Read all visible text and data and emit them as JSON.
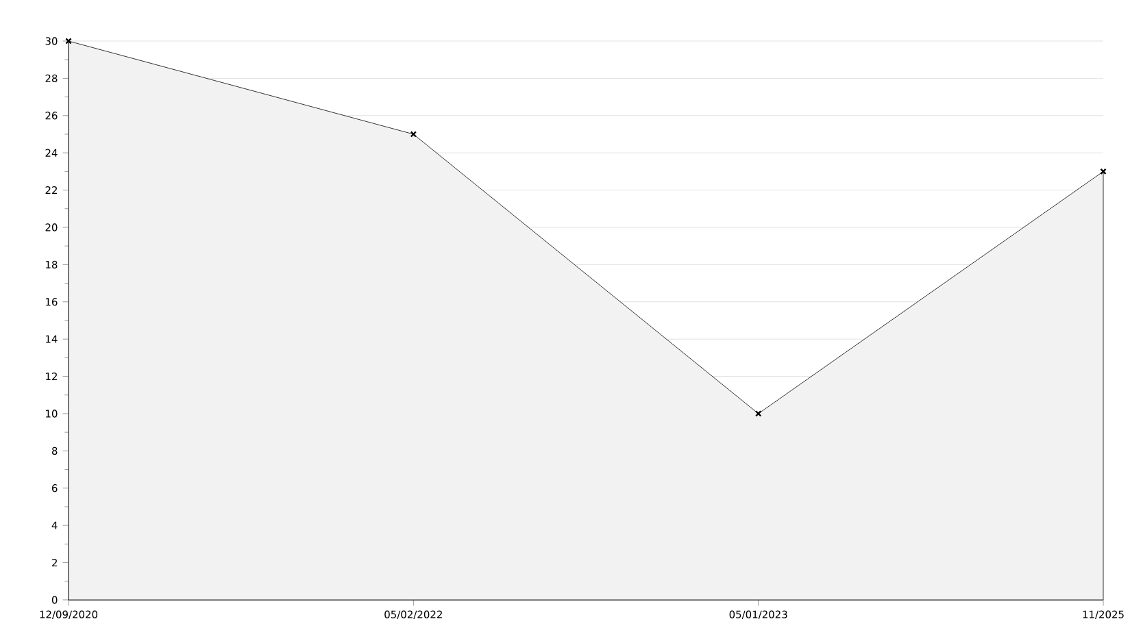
{
  "chart_data": {
    "type": "area",
    "categories": [
      "12/09/2020",
      "05/02/2022",
      "05/01/2023",
      "11/2025"
    ],
    "values": [
      30,
      25,
      10,
      23
    ],
    "color": "#f2f2f2",
    "ylim": [
      0,
      30
    ],
    "yticks": [
      0,
      2,
      4,
      6,
      8,
      10,
      12,
      14,
      16,
      18,
      20,
      22,
      24,
      26,
      28,
      30
    ],
    "grid": "y",
    "marker": "cross"
  }
}
